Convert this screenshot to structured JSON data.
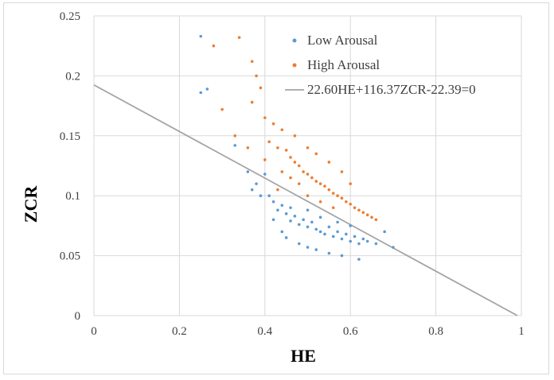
{
  "chart_data": {
    "type": "scatter",
    "title": "",
    "xlabel": "HE",
    "ylabel": "ZCR",
    "xlim": [
      0,
      1
    ],
    "ylim": [
      0,
      0.25
    ],
    "x_ticks": [
      "0",
      "0.2",
      "0.4",
      "0.6",
      "0.8",
      "1"
    ],
    "y_ticks": [
      "0",
      "0.05",
      "0.1",
      "0.15",
      "0.2",
      "0.25"
    ],
    "grid": true,
    "legend_position": "top-right",
    "series": [
      {
        "name": "Low Arousal",
        "color": "#5b9bd5",
        "marker": "dot",
        "points": [
          [
            0.25,
            0.233
          ],
          [
            0.25,
            0.186
          ],
          [
            0.265,
            0.189
          ],
          [
            0.33,
            0.142
          ],
          [
            0.36,
            0.12
          ],
          [
            0.37,
            0.105
          ],
          [
            0.38,
            0.11
          ],
          [
            0.39,
            0.1
          ],
          [
            0.4,
            0.118
          ],
          [
            0.41,
            0.1
          ],
          [
            0.42,
            0.095
          ],
          [
            0.43,
            0.088
          ],
          [
            0.44,
            0.092
          ],
          [
            0.45,
            0.085
          ],
          [
            0.46,
            0.079
          ],
          [
            0.47,
            0.083
          ],
          [
            0.48,
            0.076
          ],
          [
            0.49,
            0.08
          ],
          [
            0.5,
            0.074
          ],
          [
            0.51,
            0.078
          ],
          [
            0.52,
            0.072
          ],
          [
            0.53,
            0.07
          ],
          [
            0.54,
            0.068
          ],
          [
            0.55,
            0.074
          ],
          [
            0.56,
            0.066
          ],
          [
            0.57,
            0.07
          ],
          [
            0.58,
            0.064
          ],
          [
            0.59,
            0.068
          ],
          [
            0.6,
            0.062
          ],
          [
            0.61,
            0.066
          ],
          [
            0.62,
            0.06
          ],
          [
            0.63,
            0.064
          ],
          [
            0.64,
            0.062
          ],
          [
            0.66,
            0.06
          ],
          [
            0.68,
            0.07
          ],
          [
            0.7,
            0.057
          ],
          [
            0.45,
            0.065
          ],
          [
            0.48,
            0.06
          ],
          [
            0.5,
            0.057
          ],
          [
            0.52,
            0.055
          ],
          [
            0.55,
            0.052
          ],
          [
            0.58,
            0.05
          ],
          [
            0.62,
            0.047
          ],
          [
            0.44,
            0.07
          ],
          [
            0.46,
            0.09
          ],
          [
            0.5,
            0.088
          ],
          [
            0.53,
            0.082
          ],
          [
            0.57,
            0.078
          ],
          [
            0.6,
            0.075
          ],
          [
            0.42,
            0.08
          ]
        ]
      },
      {
        "name": "High Arousal",
        "color": "#ed7d31",
        "marker": "dot",
        "points": [
          [
            0.34,
            0.232
          ],
          [
            0.28,
            0.225
          ],
          [
            0.37,
            0.212
          ],
          [
            0.38,
            0.2
          ],
          [
            0.39,
            0.19
          ],
          [
            0.3,
            0.172
          ],
          [
            0.37,
            0.178
          ],
          [
            0.4,
            0.165
          ],
          [
            0.42,
            0.16
          ],
          [
            0.44,
            0.155
          ],
          [
            0.33,
            0.15
          ],
          [
            0.36,
            0.14
          ],
          [
            0.41,
            0.145
          ],
          [
            0.43,
            0.14
          ],
          [
            0.45,
            0.138
          ],
          [
            0.46,
            0.132
          ],
          [
            0.47,
            0.128
          ],
          [
            0.48,
            0.125
          ],
          [
            0.49,
            0.12
          ],
          [
            0.5,
            0.118
          ],
          [
            0.51,
            0.115
          ],
          [
            0.52,
            0.112
          ],
          [
            0.53,
            0.11
          ],
          [
            0.54,
            0.108
          ],
          [
            0.55,
            0.105
          ],
          [
            0.56,
            0.102
          ],
          [
            0.57,
            0.1
          ],
          [
            0.58,
            0.098
          ],
          [
            0.59,
            0.095
          ],
          [
            0.6,
            0.093
          ],
          [
            0.61,
            0.09
          ],
          [
            0.62,
            0.088
          ],
          [
            0.63,
            0.086
          ],
          [
            0.64,
            0.084
          ],
          [
            0.65,
            0.082
          ],
          [
            0.66,
            0.08
          ],
          [
            0.5,
            0.14
          ],
          [
            0.52,
            0.135
          ],
          [
            0.55,
            0.128
          ],
          [
            0.58,
            0.12
          ],
          [
            0.6,
            0.11
          ],
          [
            0.47,
            0.15
          ],
          [
            0.5,
            0.1
          ],
          [
            0.53,
            0.095
          ],
          [
            0.56,
            0.09
          ],
          [
            0.44,
            0.12
          ],
          [
            0.46,
            0.115
          ],
          [
            0.48,
            0.11
          ],
          [
            0.4,
            0.13
          ],
          [
            0.43,
            0.105
          ]
        ]
      },
      {
        "name": "22.60HE+116.37ZCR-22.39=0",
        "type": "line",
        "color": "#a5a5a5",
        "points": [
          [
            0,
            0.1924
          ],
          [
            0.9907,
            0
          ]
        ]
      }
    ]
  }
}
